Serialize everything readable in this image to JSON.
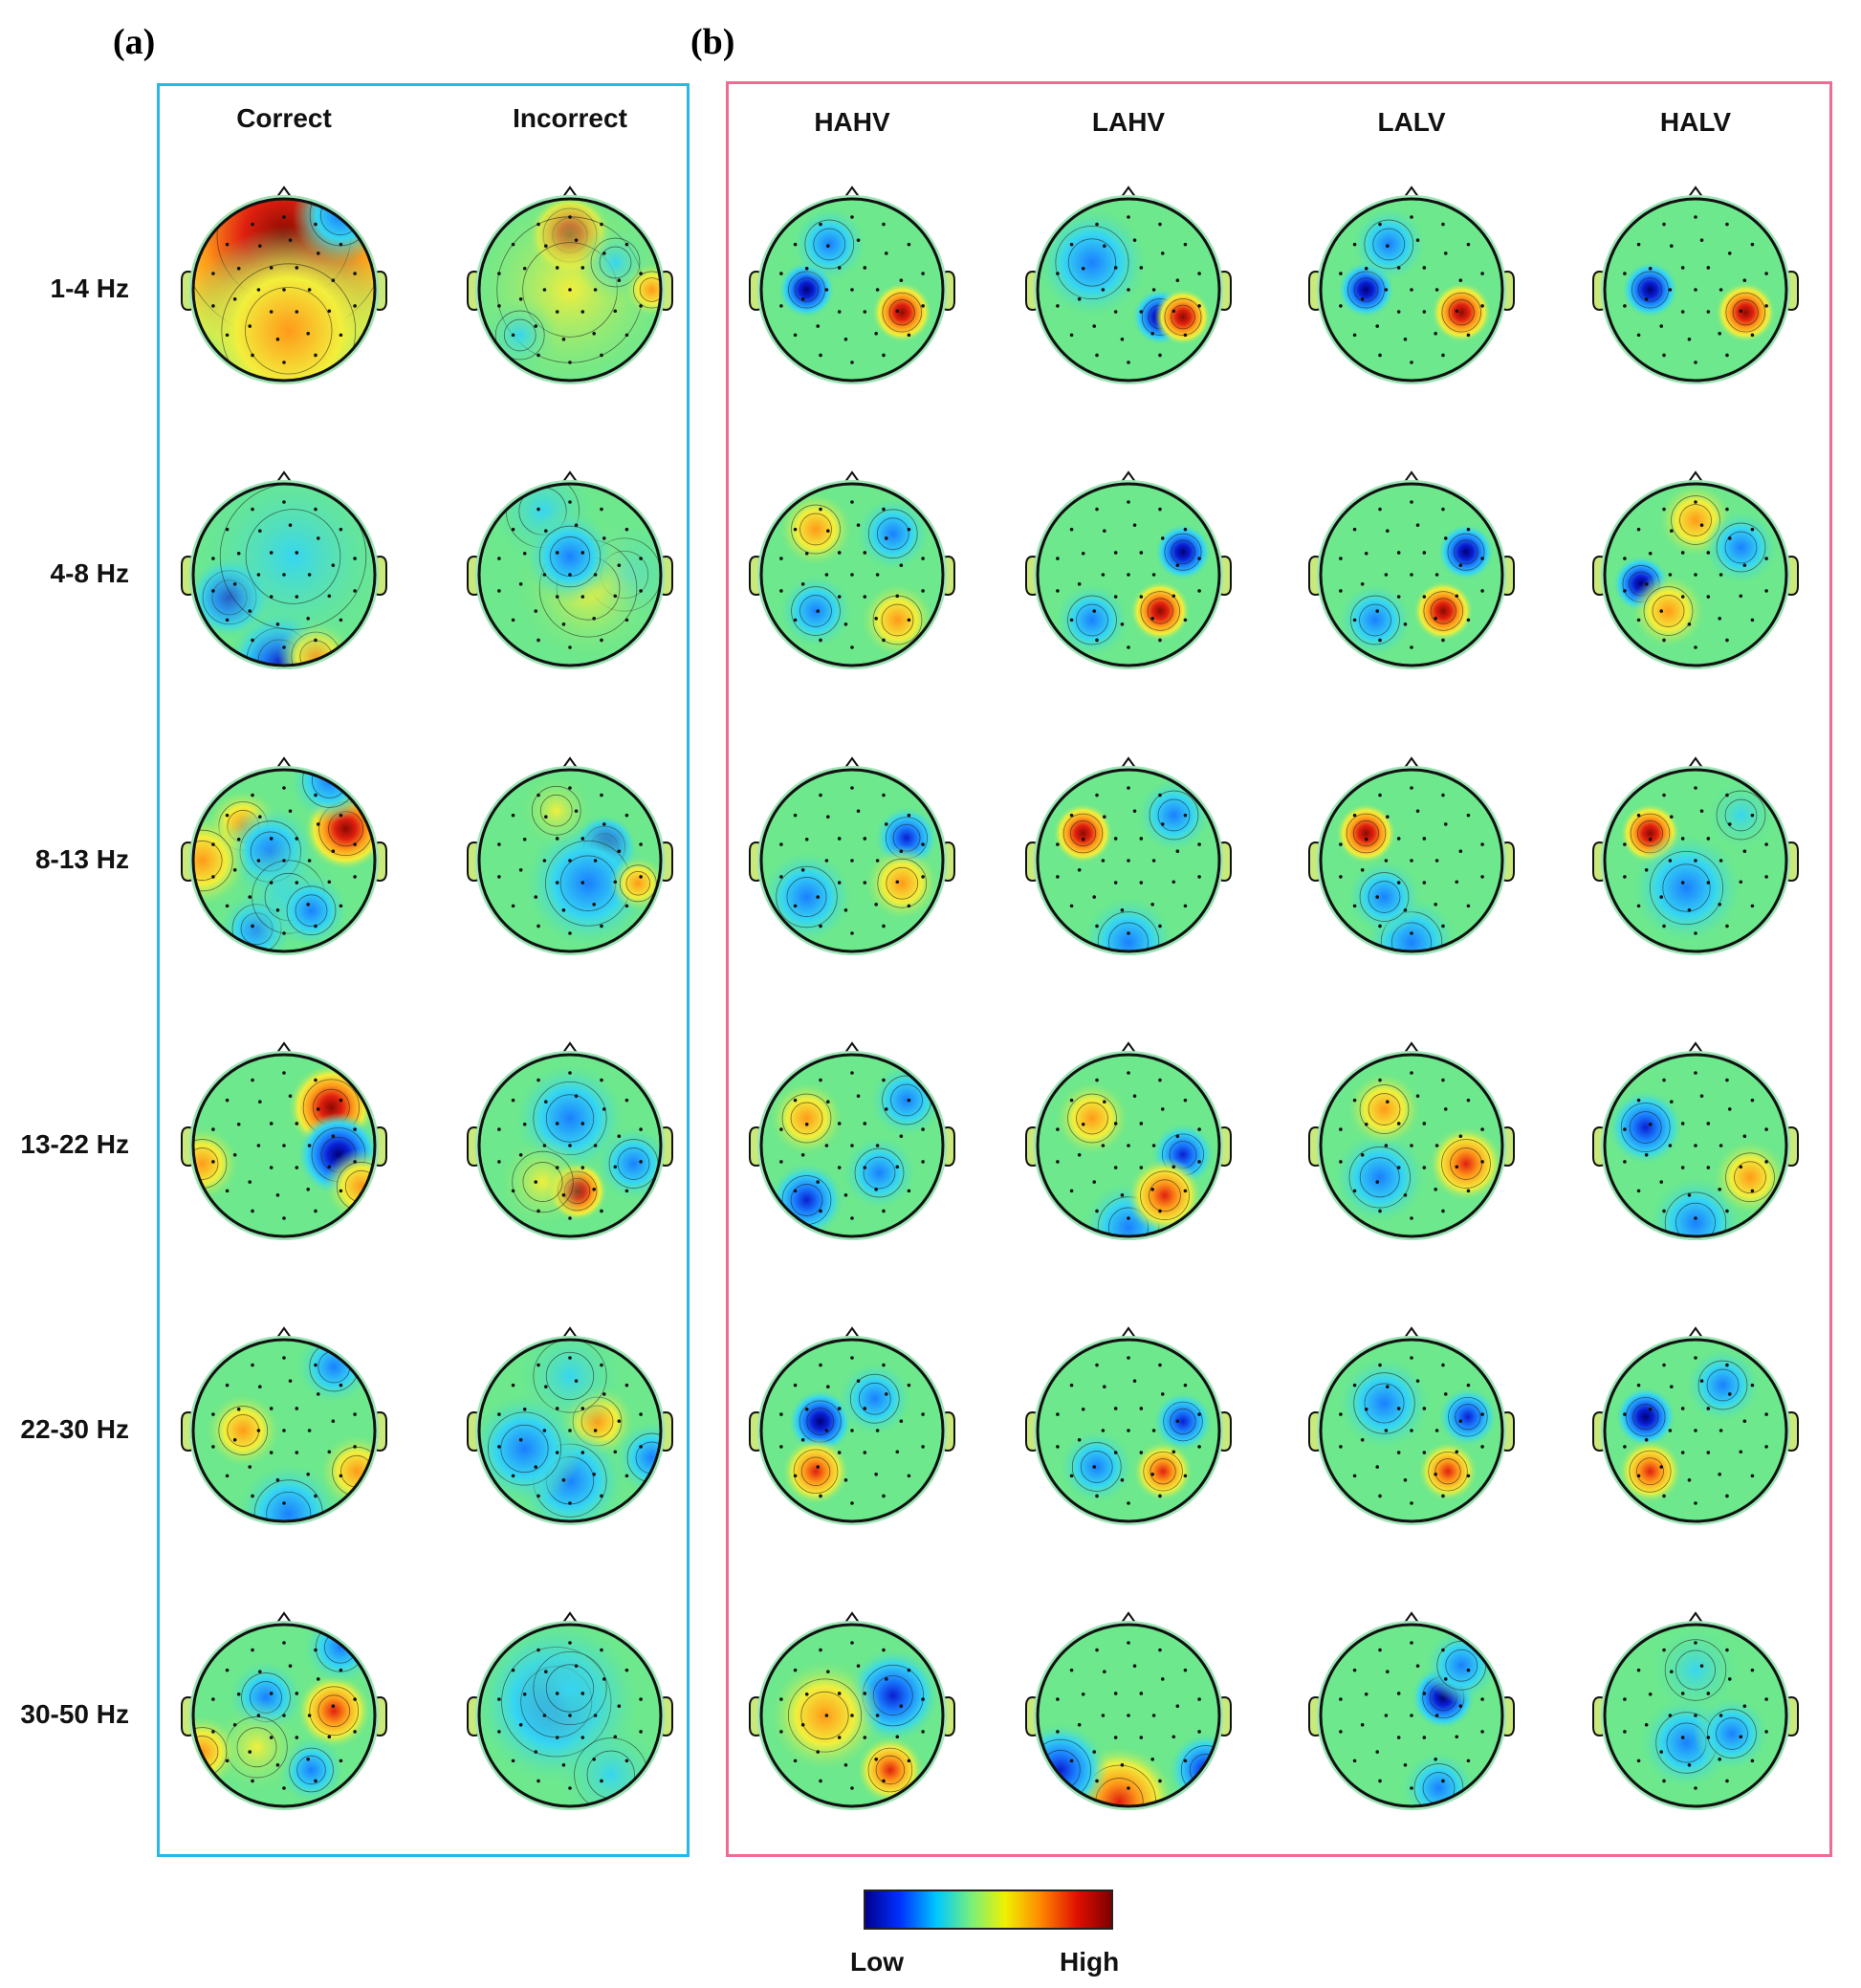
{
  "panels": {
    "a": {
      "letter": "(a)",
      "border_color": "#29b6e8",
      "columns": [
        "Correct",
        "Incorrect"
      ]
    },
    "b": {
      "letter": "(b)",
      "border_color": "#ee6c93",
      "columns": [
        "HAHV",
        "LAHV",
        "LALV",
        "HALV"
      ]
    }
  },
  "rows": [
    "1-4 Hz",
    "4-8 Hz",
    "8-13 Hz",
    "13-22 Hz",
    "22-30 Hz",
    "30-50 Hz"
  ],
  "colorbar": {
    "low_label": "Low",
    "high_label": "High",
    "stops": [
      "#00008f",
      "#0030ff",
      "#00c8ff",
      "#78f07a",
      "#f0f000",
      "#ff8a00",
      "#e01000",
      "#7f0000"
    ]
  },
  "topomap_colors": {
    "background": "#6de88c",
    "positive": [
      "#f2ef3c",
      "#ff9a1a",
      "#e02010",
      "#8a0a00"
    ],
    "negative": [
      "#36d6f2",
      "#1a80ff",
      "#0a1ed2",
      "#000078"
    ]
  },
  "topomaps": [
    [
      [
        [
          0.0,
          0.6,
          2.2,
          0.85
        ],
        [
          -0.15,
          -0.45,
          -0.5,
          0.25
        ],
        [
          0.05,
          -0.45,
          0.4,
          0.55
        ],
        [
          0.62,
          0.82,
          -0.6,
          0.25
        ]
      ],
      [
        [
          -0.6,
          -0.25,
          -1.3,
          0.22
        ],
        [
          -0.05,
          -0.95,
          -1.8,
          0.27
        ],
        [
          0.35,
          -0.9,
          0.4,
          0.2
        ],
        [
          0.1,
          0.2,
          -0.3,
          0.6
        ]
      ],
      [
        [
          -0.45,
          0.38,
          0.9,
          0.2
        ],
        [
          -0.15,
          0.1,
          -1.0,
          0.25
        ],
        [
          0.68,
          0.35,
          2.2,
          0.22
        ],
        [
          0.5,
          0.88,
          -0.8,
          0.22
        ],
        [
          -0.3,
          -0.75,
          -0.5,
          0.2
        ],
        [
          -0.9,
          0.0,
          0.5,
          0.25
        ],
        [
          0.05,
          -0.4,
          -0.3,
          0.3
        ],
        [
          0.3,
          -0.55,
          -0.5,
          0.2
        ]
      ],
      [
        [
          0.52,
          0.42,
          2.0,
          0.23
        ],
        [
          0.6,
          -0.1,
          -2.0,
          0.22
        ],
        [
          0.85,
          -0.45,
          0.55,
          0.2
        ],
        [
          -0.9,
          -0.2,
          0.4,
          0.2
        ]
      ],
      [
        [
          -0.45,
          0.0,
          1.0,
          0.2
        ],
        [
          0.05,
          -0.92,
          -0.8,
          0.28
        ],
        [
          0.55,
          0.7,
          -0.6,
          0.2
        ],
        [
          0.8,
          -0.45,
          0.4,
          0.2
        ]
      ],
      [
        [
          0.55,
          0.05,
          1.9,
          0.2
        ],
        [
          0.62,
          0.75,
          -0.55,
          0.2
        ],
        [
          0.3,
          -0.6,
          -1.0,
          0.18
        ],
        [
          -0.2,
          0.2,
          -0.6,
          0.2
        ],
        [
          -0.3,
          -0.35,
          0.3,
          0.25
        ],
        [
          -0.9,
          -0.4,
          0.5,
          0.2
        ]
      ]
    ],
    [
      [
        [
          0.0,
          0.6,
          2.1,
          0.22
        ],
        [
          0.0,
          0.0,
          0.25,
          0.6
        ],
        [
          0.5,
          0.3,
          -0.3,
          0.2
        ],
        [
          -0.55,
          -0.5,
          -0.35,
          0.2
        ],
        [
          0.9,
          0.0,
          0.4,
          0.15
        ]
      ],
      [
        [
          -0.3,
          0.7,
          -0.3,
          0.3
        ],
        [
          0.6,
          0.0,
          -0.2,
          0.3
        ],
        [
          0.2,
          -0.15,
          0.2,
          0.4
        ],
        [
          0.0,
          0.2,
          -0.4,
          0.25
        ]
      ],
      [
        [
          0.38,
          0.15,
          -2.3,
          0.17
        ],
        [
          0.2,
          -0.25,
          -0.9,
          0.35
        ],
        [
          0.75,
          -0.25,
          0.5,
          0.15
        ],
        [
          -0.15,
          0.55,
          0.3,
          0.2
        ]
      ],
      [
        [
          0.08,
          -0.5,
          2.0,
          0.16
        ],
        [
          0.0,
          0.3,
          -0.5,
          0.3
        ],
        [
          0.7,
          -0.2,
          -0.4,
          0.2
        ],
        [
          -0.3,
          -0.4,
          0.3,
          0.25
        ]
      ],
      [
        [
          0.3,
          0.1,
          0.8,
          0.2
        ],
        [
          0.0,
          -0.55,
          -0.6,
          0.3
        ],
        [
          0.0,
          0.6,
          -0.2,
          0.3
        ],
        [
          -0.5,
          -0.2,
          -0.4,
          0.3
        ],
        [
          0.9,
          -0.3,
          -0.5,
          0.2
        ]
      ],
      [
        [
          -0.15,
          0.15,
          -0.4,
          0.45
        ],
        [
          0.45,
          -0.65,
          -0.3,
          0.3
        ],
        [
          0.0,
          0.3,
          -0.3,
          0.3
        ]
      ]
    ],
    [
      [
        [
          -0.5,
          0.0,
          -2.1,
          0.15
        ],
        [
          0.55,
          -0.25,
          2.2,
          0.16
        ],
        [
          -0.25,
          0.5,
          -0.5,
          0.2
        ]
      ],
      [
        [
          0.35,
          -0.3,
          -2.1,
          0.15
        ],
        [
          0.6,
          -0.3,
          2.0,
          0.15
        ],
        [
          -0.4,
          0.3,
          -0.5,
          0.3
        ]
      ],
      [
        [
          -0.5,
          0.0,
          -2.1,
          0.15
        ],
        [
          0.55,
          -0.25,
          2.2,
          0.16
        ],
        [
          -0.25,
          0.5,
          -0.5,
          0.2
        ]
      ],
      [
        [
          -0.5,
          0.0,
          -2.0,
          0.15
        ],
        [
          0.55,
          -0.25,
          2.1,
          0.16
        ]
      ]
    ],
    [
      [
        [
          0.45,
          0.45,
          -1.0,
          0.2
        ],
        [
          0.5,
          -0.5,
          1.1,
          0.2
        ],
        [
          -0.4,
          0.5,
          0.5,
          0.2
        ],
        [
          -0.4,
          -0.4,
          -0.5,
          0.2
        ]
      ],
      [
        [
          0.6,
          0.25,
          -2.0,
          0.15
        ],
        [
          0.35,
          -0.4,
          2.0,
          0.16
        ],
        [
          -0.4,
          -0.5,
          -1.0,
          0.2
        ]
      ],
      [
        [
          0.6,
          0.25,
          -2.0,
          0.15
        ],
        [
          0.35,
          -0.4,
          2.0,
          0.16
        ],
        [
          -0.4,
          -0.5,
          -1.0,
          0.2
        ]
      ],
      [
        [
          -0.6,
          -0.1,
          -2.2,
          0.15
        ],
        [
          0.0,
          0.6,
          1.0,
          0.2
        ],
        [
          -0.3,
          -0.4,
          0.8,
          0.2
        ],
        [
          0.5,
          0.3,
          -0.5,
          0.2
        ]
      ]
    ],
    [
      [
        [
          0.6,
          0.25,
          -1.8,
          0.17
        ],
        [
          0.55,
          -0.25,
          1.1,
          0.2
        ],
        [
          -0.5,
          -0.4,
          -0.6,
          0.25
        ]
      ],
      [
        [
          -0.5,
          0.3,
          2.3,
          0.16
        ],
        [
          0.0,
          -0.9,
          -0.6,
          0.25
        ],
        [
          0.5,
          0.5,
          -0.4,
          0.2
        ]
      ],
      [
        [
          -0.5,
          0.3,
          2.2,
          0.16
        ],
        [
          0.0,
          -0.9,
          -0.6,
          0.25
        ],
        [
          -0.3,
          -0.4,
          -0.4,
          0.2
        ]
      ],
      [
        [
          -0.5,
          0.3,
          2.2,
          0.16
        ],
        [
          -0.1,
          -0.3,
          -0.5,
          0.3
        ],
        [
          0.5,
          0.5,
          -0.3,
          0.2
        ]
      ]
    ],
    [
      [
        [
          -0.5,
          0.3,
          0.8,
          0.2
        ],
        [
          -0.5,
          -0.6,
          -1.3,
          0.2
        ],
        [
          0.6,
          0.5,
          -0.5,
          0.2
        ],
        [
          0.3,
          -0.3,
          -0.4,
          0.2
        ]
      ],
      [
        [
          0.0,
          -0.9,
          -0.8,
          0.25
        ],
        [
          0.6,
          -0.1,
          -1.7,
          0.17
        ],
        [
          0.4,
          -0.55,
          1.2,
          0.2
        ],
        [
          -0.4,
          0.3,
          0.5,
          0.2
        ]
      ],
      [
        [
          -0.35,
          -0.35,
          -1.1,
          0.25
        ],
        [
          0.6,
          -0.2,
          1.2,
          0.2
        ],
        [
          -0.3,
          0.4,
          0.5,
          0.2
        ]
      ],
      [
        [
          -0.55,
          0.2,
          -1.6,
          0.2
        ],
        [
          0.0,
          -0.85,
          -0.6,
          0.25
        ],
        [
          0.6,
          -0.35,
          0.4,
          0.2
        ]
      ]
    ],
    [
      [
        [
          -0.35,
          0.1,
          -2.1,
          0.17
        ],
        [
          -0.4,
          -0.45,
          1.6,
          0.18
        ],
        [
          0.25,
          0.35,
          -0.5,
          0.2
        ]
      ],
      [
        [
          0.6,
          0.1,
          -1.9,
          0.16
        ],
        [
          0.38,
          -0.45,
          1.7,
          0.16
        ],
        [
          -0.35,
          -0.4,
          -0.6,
          0.2
        ]
      ],
      [
        [
          0.62,
          0.15,
          -1.9,
          0.16
        ],
        [
          0.4,
          -0.45,
          1.8,
          0.16
        ],
        [
          -0.3,
          0.3,
          -0.4,
          0.25
        ]
      ],
      [
        [
          -0.55,
          0.15,
          -2.2,
          0.16
        ],
        [
          -0.5,
          -0.45,
          1.5,
          0.17
        ],
        [
          0.3,
          0.5,
          -0.5,
          0.2
        ]
      ]
    ],
    [
      [
        [
          0.45,
          0.22,
          -1.3,
          0.25
        ],
        [
          0.42,
          -0.6,
          1.4,
          0.18
        ],
        [
          -0.3,
          0.0,
          0.4,
          0.3
        ]
      ],
      [
        [
          -0.1,
          -0.95,
          1.2,
          0.3
        ],
        [
          -0.75,
          -0.6,
          -1.2,
          0.25
        ],
        [
          0.85,
          -0.6,
          -1.2,
          0.2
        ]
      ],
      [
        [
          0.35,
          0.2,
          -2.0,
          0.17
        ],
        [
          0.55,
          0.55,
          -0.5,
          0.2
        ],
        [
          0.3,
          -0.8,
          -0.5,
          0.2
        ]
      ],
      [
        [
          -0.1,
          -0.3,
          -1.1,
          0.25
        ],
        [
          0.4,
          -0.2,
          -0.6,
          0.2
        ],
        [
          0.0,
          0.5,
          -0.3,
          0.25
        ]
      ]
    ],
    [
      [
        [
          0.6,
          0.25,
          -1.5,
          0.15
        ],
        [
          0.55,
          -0.35,
          1.1,
          0.2
        ],
        [
          -0.5,
          0.0,
          0.5,
          0.25
        ]
      ],
      [
        [
          -0.25,
          0.1,
          -2.1,
          0.22
        ],
        [
          0.0,
          0.5,
          0.4,
          0.2
        ],
        [
          0.4,
          0.2,
          -0.5,
          0.2
        ]
      ],
      [
        [
          0.85,
          0.3,
          -1.0,
          0.15
        ],
        [
          0.5,
          -0.5,
          1.3,
          0.2
        ],
        [
          -0.4,
          -0.35,
          -0.4,
          0.2
        ]
      ],
      [
        [
          0.1,
          -0.7,
          -1.0,
          0.25
        ],
        [
          0.45,
          -0.3,
          -0.6,
          0.2
        ],
        [
          -0.4,
          0.4,
          0.3,
          0.2
        ]
      ]
    ],
    [
      [
        [
          0.55,
          -0.35,
          -2.0,
          0.17
        ],
        [
          0.25,
          -0.5,
          1.4,
          0.17
        ],
        [
          -0.6,
          0.3,
          0.6,
          0.2
        ]
      ],
      [
        [
          0.55,
          -0.35,
          -2.0,
          0.17
        ],
        [
          0.25,
          -0.5,
          1.4,
          0.17
        ],
        [
          0.4,
          0.45,
          -0.4,
          0.2
        ],
        [
          -0.5,
          -0.3,
          -0.5,
          0.25
        ]
      ],
      [
        [
          0.55,
          -0.35,
          -2.0,
          0.17
        ],
        [
          0.25,
          -0.5,
          1.3,
          0.17
        ],
        [
          -0.4,
          0.4,
          0.3,
          0.2
        ]
      ],
      [
        [
          0.55,
          -0.35,
          -2.0,
          0.17
        ],
        [
          0.25,
          -0.5,
          1.4,
          0.17
        ],
        [
          -0.5,
          0.2,
          0.3,
          0.2
        ]
      ]
    ],
    [
      [
        [
          0.55,
          -0.35,
          -2.0,
          0.17
        ],
        [
          0.25,
          -0.5,
          1.4,
          0.17
        ],
        [
          -0.6,
          0.3,
          0.6,
          0.2
        ]
      ],
      [
        [
          0.62,
          -0.3,
          -2.0,
          0.17
        ],
        [
          0.3,
          -0.5,
          1.4,
          0.17
        ],
        [
          -0.4,
          0.3,
          -0.4,
          0.25
        ]
      ],
      [
        [
          0.6,
          -0.35,
          -2.0,
          0.17
        ],
        [
          0.25,
          -0.5,
          1.4,
          0.17
        ],
        [
          -0.4,
          0.4,
          0.3,
          0.2
        ]
      ],
      [
        [
          0.55,
          -0.35,
          -2.0,
          0.17
        ],
        [
          0.25,
          -0.5,
          1.4,
          0.17
        ],
        [
          0.0,
          0.5,
          -0.3,
          0.25
        ]
      ]
    ]
  ]
}
